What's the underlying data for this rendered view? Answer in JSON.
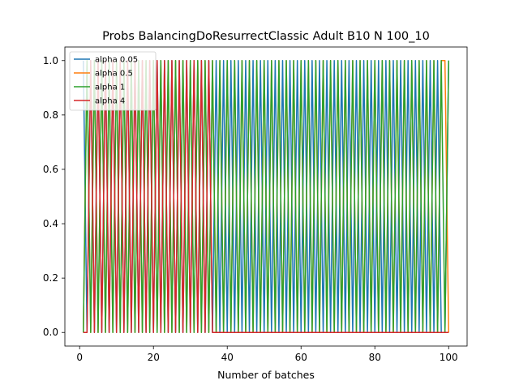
{
  "chart_data": {
    "type": "line",
    "title": "Probs BalancingDoResurrectClassic Adult B10 N 100_10",
    "xlabel": "Number of batches",
    "ylabel": "",
    "xlim": [
      -4.0,
      105.0
    ],
    "ylim": [
      -0.05,
      1.05
    ],
    "xticks": [
      0,
      20,
      40,
      60,
      80,
      100
    ],
    "yticks": [
      0.0,
      0.2,
      0.4,
      0.6,
      0.8,
      1.0
    ],
    "xtick_labels": [
      "0",
      "20",
      "40",
      "60",
      "80",
      "100"
    ],
    "ytick_labels": [
      "0.0",
      "0.2",
      "0.4",
      "0.6",
      "0.8",
      "1.0"
    ],
    "grid": false,
    "legend_position": "upper-left",
    "series": [
      {
        "name": "alpha 0.05",
        "color": "#1f77b4",
        "x": [
          1,
          2,
          3,
          4,
          5,
          6,
          7,
          8,
          9,
          10,
          11,
          12,
          13,
          14,
          15,
          16,
          17,
          18,
          19,
          20,
          21,
          22,
          23,
          24,
          25,
          26,
          27,
          28,
          29,
          30,
          31,
          32,
          33,
          34,
          35,
          36,
          37,
          38,
          39,
          40,
          41,
          42,
          43,
          44,
          45,
          46,
          47,
          48,
          49,
          50,
          51,
          52,
          53,
          54,
          55,
          56,
          57,
          58,
          59,
          60,
          61,
          62,
          63,
          64,
          65,
          66,
          67,
          68,
          69,
          70,
          71,
          72,
          73,
          74,
          75,
          76,
          77,
          78,
          79,
          80,
          81,
          82,
          83,
          84,
          85,
          86,
          87,
          88,
          89,
          90,
          91,
          92,
          93,
          94,
          95,
          96,
          97,
          98,
          99,
          100
        ],
        "y": [
          1,
          0,
          1,
          0,
          1,
          0,
          1,
          0,
          1,
          0,
          1,
          0,
          1,
          0,
          1,
          0,
          1,
          0,
          1,
          0,
          1,
          0,
          1,
          0,
          1,
          0,
          1,
          0,
          1,
          0,
          1,
          0,
          1,
          0,
          1,
          0,
          1,
          0,
          1,
          0,
          1,
          0,
          1,
          0,
          1,
          0,
          1,
          0,
          1,
          0,
          1,
          0,
          1,
          0,
          1,
          0,
          1,
          0,
          1,
          0,
          1,
          0,
          1,
          0,
          1,
          0,
          1,
          0,
          1,
          0,
          1,
          0,
          1,
          0,
          1,
          0,
          1,
          0,
          1,
          0,
          1,
          0,
          1,
          0,
          1,
          0,
          1,
          0,
          1,
          0,
          1,
          0,
          1,
          0,
          1,
          0,
          1,
          0,
          0,
          1
        ]
      },
      {
        "name": "alpha 0.5",
        "color": "#ff7f0e",
        "x": [
          1,
          2,
          3,
          4,
          5,
          6,
          7,
          8,
          9,
          10,
          11,
          12,
          13,
          14,
          15,
          16,
          17,
          18,
          19,
          20,
          21,
          22,
          23,
          24,
          25,
          26,
          27,
          28,
          29,
          30,
          31,
          32,
          33,
          34,
          35,
          36,
          37,
          38,
          39,
          40,
          41,
          42,
          43,
          44,
          45,
          46,
          47,
          48,
          49,
          50,
          51,
          52,
          53,
          54,
          55,
          56,
          57,
          58,
          59,
          60,
          61,
          62,
          63,
          64,
          65,
          66,
          67,
          68,
          69,
          70,
          71,
          72,
          73,
          74,
          75,
          76,
          77,
          78,
          79,
          80,
          81,
          82,
          83,
          84,
          85,
          86,
          87,
          88,
          89,
          90,
          91,
          92,
          93,
          94,
          95,
          96,
          97,
          98,
          99,
          100
        ],
        "y": [
          0,
          1,
          0,
          1,
          0,
          1,
          0,
          1,
          0,
          1,
          0,
          1,
          0,
          1,
          0,
          1,
          0,
          1,
          0,
          1,
          0,
          1,
          0,
          1,
          0,
          1,
          0,
          1,
          0,
          1,
          0,
          1,
          0,
          1,
          0,
          1,
          0,
          1,
          0,
          1,
          0,
          1,
          0,
          1,
          0,
          1,
          0,
          1,
          0,
          1,
          0,
          1,
          0,
          1,
          0,
          1,
          0,
          1,
          0,
          1,
          0,
          1,
          0,
          1,
          0,
          1,
          0,
          1,
          0,
          1,
          0,
          1,
          0,
          1,
          0,
          1,
          0,
          1,
          0,
          1,
          0,
          1,
          0,
          1,
          0,
          1,
          0,
          1,
          0,
          1,
          0,
          1,
          0,
          1,
          0,
          1,
          0,
          1,
          1,
          0
        ]
      },
      {
        "name": "alpha 1",
        "color": "#2ca02c",
        "x": [
          1,
          2,
          3,
          4,
          5,
          6,
          7,
          8,
          9,
          10,
          11,
          12,
          13,
          14,
          15,
          16,
          17,
          18,
          19,
          20,
          21,
          22,
          23,
          24,
          25,
          26,
          27,
          28,
          29,
          30,
          31,
          32,
          33,
          34,
          35,
          36,
          37,
          38,
          39,
          40,
          41,
          42,
          43,
          44,
          45,
          46,
          47,
          48,
          49,
          50,
          51,
          52,
          53,
          54,
          55,
          56,
          57,
          58,
          59,
          60,
          61,
          62,
          63,
          64,
          65,
          66,
          67,
          68,
          69,
          70,
          71,
          72,
          73,
          74,
          75,
          76,
          77,
          78,
          79,
          80,
          81,
          82,
          83,
          84,
          85,
          86,
          87,
          88,
          89,
          90,
          91,
          92,
          93,
          94,
          95,
          96,
          97,
          98,
          99,
          100
        ],
        "y": [
          0,
          1,
          0,
          1,
          0,
          1,
          0,
          1,
          0,
          1,
          0,
          1,
          0,
          1,
          0,
          1,
          0,
          1,
          0,
          1,
          0,
          1,
          0,
          1,
          0,
          1,
          0,
          1,
          0,
          1,
          0,
          1,
          0,
          1,
          0,
          1,
          0,
          1,
          0,
          1,
          0,
          1,
          0,
          1,
          0,
          1,
          0,
          1,
          0,
          1,
          0,
          1,
          0,
          1,
          0,
          1,
          0,
          1,
          0,
          1,
          0,
          1,
          0,
          1,
          0,
          1,
          0,
          1,
          0,
          1,
          0,
          1,
          0,
          1,
          0,
          1,
          0,
          1,
          0,
          1,
          0,
          1,
          0,
          1,
          0,
          1,
          0,
          1,
          0,
          1,
          0,
          1,
          0,
          1,
          0,
          1,
          0,
          1,
          0,
          1
        ]
      },
      {
        "name": "alpha 4",
        "color": "#d62728",
        "x": [
          1,
          2,
          3,
          4,
          5,
          6,
          7,
          8,
          9,
          10,
          11,
          12,
          13,
          14,
          15,
          16,
          17,
          18,
          19,
          20,
          21,
          22,
          23,
          24,
          25,
          26,
          27,
          28,
          29,
          30,
          31,
          32,
          33,
          34,
          35,
          36,
          37,
          38,
          39,
          40,
          41,
          42,
          43,
          44,
          45,
          46,
          47,
          48,
          49,
          50,
          51,
          52,
          53,
          54,
          55,
          56,
          57,
          58,
          59,
          60,
          61,
          62,
          63,
          64,
          65,
          66,
          67,
          68,
          69,
          70,
          71,
          72,
          73,
          74,
          75,
          76,
          77,
          78,
          79,
          80,
          81,
          82,
          83,
          84,
          85,
          86,
          87,
          88,
          89,
          90,
          91,
          92,
          93,
          94,
          95,
          96,
          97,
          98,
          99,
          100
        ],
        "y": [
          0,
          0,
          1,
          0,
          1,
          0,
          1,
          0,
          1,
          0,
          1,
          0,
          1,
          0,
          1,
          0,
          1,
          0,
          1,
          0,
          1,
          0,
          1,
          0,
          1,
          0,
          1,
          0,
          1,
          0,
          1,
          0,
          1,
          0,
          1,
          0,
          0,
          0,
          0,
          0,
          0,
          0,
          0,
          0,
          0,
          0,
          0,
          0,
          0,
          0,
          0,
          0,
          0,
          0,
          0,
          0,
          0,
          0,
          0,
          0,
          0,
          0,
          0,
          0,
          0,
          0,
          0,
          0,
          0,
          0,
          0,
          0,
          0,
          0,
          0,
          0,
          0,
          0,
          0,
          0,
          0,
          0,
          0,
          0,
          0,
          0,
          0,
          0,
          0,
          0,
          0,
          0,
          0,
          0,
          0,
          0,
          0,
          0,
          0,
          0
        ]
      }
    ]
  }
}
